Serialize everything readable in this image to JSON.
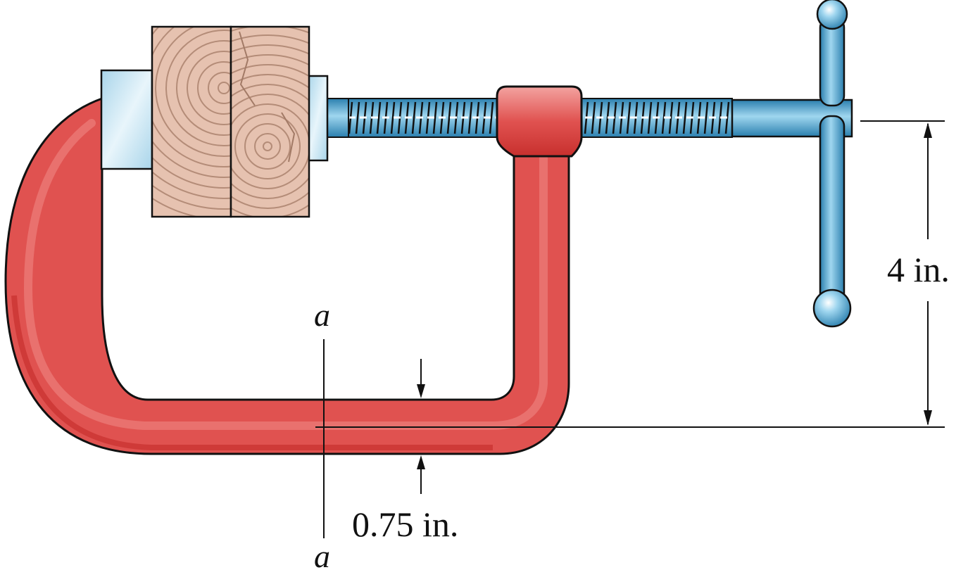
{
  "figure": {
    "dimension_height": "4 in.",
    "dimension_thickness": "0.75 in.",
    "section_label_top": "a",
    "section_label_bottom": "a"
  },
  "colors": {
    "frame_red": "#e05250",
    "frame_red_dark": "#c8302e",
    "frame_highlight": "#f08a86",
    "steel_blue": "#55aed8",
    "steel_blue_dark": "#2a7fae",
    "pad_light": "#d9eef7",
    "wood": "#e6c2b0",
    "wood_ring": "#b48c78",
    "line": "#111111"
  }
}
